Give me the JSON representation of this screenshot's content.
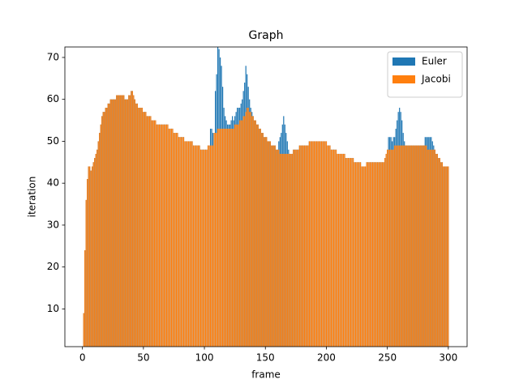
{
  "chart_data": {
    "type": "bar",
    "title": "Graph",
    "x_label": "frame",
    "y_label": "iteration",
    "x": [
      1,
      2,
      3,
      4,
      5,
      6,
      7,
      8,
      9,
      10,
      11,
      12,
      13,
      14,
      15,
      16,
      17,
      18,
      19,
      20,
      21,
      22,
      23,
      24,
      25,
      26,
      27,
      28,
      29,
      30,
      31,
      32,
      33,
      34,
      35,
      36,
      37,
      38,
      39,
      40,
      41,
      42,
      43,
      44,
      45,
      46,
      47,
      48,
      49,
      50,
      51,
      52,
      53,
      54,
      55,
      56,
      57,
      58,
      59,
      60,
      61,
      62,
      63,
      64,
      65,
      66,
      67,
      68,
      69,
      70,
      71,
      72,
      73,
      74,
      75,
      76,
      77,
      78,
      79,
      80,
      81,
      82,
      83,
      84,
      85,
      86,
      87,
      88,
      89,
      90,
      91,
      92,
      93,
      94,
      95,
      96,
      97,
      98,
      99,
      100,
      101,
      102,
      103,
      104,
      105,
      106,
      107,
      108,
      109,
      110,
      111,
      112,
      113,
      114,
      115,
      116,
      117,
      118,
      119,
      120,
      121,
      122,
      123,
      124,
      125,
      126,
      127,
      128,
      129,
      130,
      131,
      132,
      133,
      134,
      135,
      136,
      137,
      138,
      139,
      140,
      141,
      142,
      143,
      144,
      145,
      146,
      147,
      148,
      149,
      150,
      151,
      152,
      153,
      154,
      155,
      156,
      157,
      158,
      159,
      160,
      161,
      162,
      163,
      164,
      165,
      166,
      167,
      168,
      169,
      170,
      171,
      172,
      173,
      174,
      175,
      176,
      177,
      178,
      179,
      180,
      181,
      182,
      183,
      184,
      185,
      186,
      187,
      188,
      189,
      190,
      191,
      192,
      193,
      194,
      195,
      196,
      197,
      198,
      199,
      200,
      201,
      202,
      203,
      204,
      205,
      206,
      207,
      208,
      209,
      210,
      211,
      212,
      213,
      214,
      215,
      216,
      217,
      218,
      219,
      220,
      221,
      222,
      223,
      224,
      225,
      226,
      227,
      228,
      229,
      230,
      231,
      232,
      233,
      234,
      235,
      236,
      237,
      238,
      239,
      240,
      241,
      242,
      243,
      244,
      245,
      246,
      247,
      248,
      249,
      250,
      251,
      252,
      253,
      254,
      255,
      256,
      257,
      258,
      259,
      260,
      261,
      262,
      263,
      264,
      265,
      266,
      267,
      268,
      269,
      270,
      271,
      272,
      273,
      274,
      275,
      276,
      277,
      278,
      279,
      280,
      281,
      282,
      283,
      284,
      285,
      286,
      287,
      288,
      289,
      290,
      291,
      292,
      293,
      294,
      295,
      296,
      297,
      298,
      299,
      300
    ],
    "series": [
      {
        "name": "Euler",
        "color": "#1f77b4",
        "values": [
          9,
          24,
          36,
          41,
          44,
          44,
          43,
          44,
          45,
          46,
          47,
          48,
          50,
          52,
          54,
          56,
          57,
          57,
          58,
          58,
          59,
          59,
          60,
          60,
          60,
          60,
          60,
          61,
          61,
          61,
          61,
          61,
          61,
          61,
          60,
          60,
          60,
          61,
          61,
          62,
          62,
          61,
          60,
          59,
          59,
          58,
          58,
          58,
          58,
          57,
          57,
          57,
          56,
          56,
          56,
          56,
          55,
          55,
          55,
          55,
          54,
          54,
          54,
          54,
          54,
          54,
          54,
          54,
          54,
          54,
          53,
          53,
          53,
          53,
          52,
          52,
          52,
          52,
          51,
          51,
          51,
          51,
          51,
          50,
          50,
          50,
          50,
          50,
          50,
          50,
          49,
          49,
          49,
          49,
          49,
          49,
          48,
          48,
          48,
          48,
          48,
          48,
          49,
          49,
          53,
          53,
          52,
          52,
          62,
          66,
          73,
          72,
          70,
          68,
          63,
          58,
          56,
          55,
          54,
          54,
          54,
          55,
          56,
          55,
          56,
          57,
          58,
          58,
          58,
          59,
          60,
          62,
          64,
          68,
          66,
          63,
          60,
          58,
          57,
          56,
          55,
          55,
          54,
          54,
          53,
          53,
          52,
          52,
          51,
          51,
          51,
          50,
          50,
          50,
          49,
          49,
          49,
          49,
          48,
          48,
          50,
          51,
          52,
          54,
          56,
          54,
          52,
          50,
          48,
          47,
          47,
          47,
          48,
          48,
          48,
          48,
          48,
          49,
          49,
          49,
          49,
          49,
          49,
          49,
          49,
          50,
          50,
          50,
          50,
          50,
          50,
          50,
          50,
          50,
          50,
          50,
          50,
          50,
          50,
          50,
          49,
          49,
          49,
          48,
          48,
          48,
          48,
          48,
          47,
          47,
          47,
          47,
          47,
          47,
          47,
          46,
          46,
          46,
          46,
          46,
          46,
          46,
          45,
          45,
          45,
          45,
          45,
          45,
          44,
          44,
          44,
          44,
          45,
          45,
          45,
          45,
          45,
          45,
          45,
          45,
          45,
          45,
          45,
          45,
          45,
          45,
          45,
          46,
          47,
          48,
          51,
          51,
          51,
          50,
          51,
          51,
          53,
          55,
          57,
          58,
          57,
          55,
          52,
          50,
          49,
          49,
          49,
          49,
          49,
          49,
          49,
          49,
          49,
          49,
          49,
          49,
          49,
          49,
          49,
          49,
          51,
          51,
          51,
          51,
          51,
          51,
          50,
          49,
          48,
          47,
          47,
          46,
          46,
          45,
          45,
          44,
          44,
          44,
          44,
          44
        ]
      },
      {
        "name": "Jacobi",
        "color": "#ff7f0e",
        "values": [
          9,
          24,
          36,
          41,
          44,
          44,
          43,
          44,
          45,
          46,
          47,
          48,
          50,
          52,
          54,
          56,
          57,
          57,
          58,
          58,
          59,
          59,
          60,
          60,
          60,
          60,
          60,
          61,
          61,
          61,
          61,
          61,
          61,
          61,
          60,
          60,
          60,
          61,
          61,
          62,
          62,
          61,
          60,
          59,
          59,
          58,
          58,
          58,
          58,
          57,
          57,
          57,
          56,
          56,
          56,
          56,
          55,
          55,
          55,
          55,
          54,
          54,
          54,
          54,
          54,
          54,
          54,
          54,
          54,
          54,
          53,
          53,
          53,
          53,
          52,
          52,
          52,
          52,
          51,
          51,
          51,
          51,
          51,
          50,
          50,
          50,
          50,
          50,
          50,
          50,
          49,
          49,
          49,
          49,
          49,
          49,
          48,
          48,
          48,
          48,
          48,
          48,
          49,
          49,
          49,
          49,
          49,
          52,
          52,
          52,
          53,
          53,
          53,
          53,
          53,
          53,
          53,
          53,
          53,
          53,
          53,
          53,
          53,
          53,
          54,
          54,
          54,
          54,
          55,
          55,
          55,
          56,
          56,
          57,
          58,
          58,
          57,
          57,
          56,
          56,
          55,
          55,
          54,
          54,
          53,
          53,
          52,
          52,
          51,
          51,
          51,
          50,
          50,
          50,
          49,
          49,
          49,
          49,
          48,
          48,
          48,
          47,
          47,
          47,
          47,
          47,
          47,
          47,
          47,
          47,
          47,
          47,
          48,
          48,
          48,
          48,
          48,
          49,
          49,
          49,
          49,
          49,
          49,
          49,
          49,
          50,
          50,
          50,
          50,
          50,
          50,
          50,
          50,
          50,
          50,
          50,
          50,
          50,
          50,
          50,
          49,
          49,
          49,
          48,
          48,
          48,
          48,
          48,
          47,
          47,
          47,
          47,
          47,
          47,
          47,
          46,
          46,
          46,
          46,
          46,
          46,
          46,
          45,
          45,
          45,
          45,
          45,
          45,
          44,
          44,
          44,
          44,
          45,
          45,
          45,
          45,
          45,
          45,
          45,
          45,
          45,
          45,
          45,
          45,
          45,
          45,
          45,
          46,
          47,
          48,
          48,
          48,
          48,
          48,
          48,
          49,
          49,
          49,
          49,
          49,
          49,
          49,
          49,
          49,
          49,
          49,
          49,
          49,
          49,
          49,
          49,
          49,
          49,
          49,
          49,
          49,
          49,
          49,
          49,
          49,
          49,
          49,
          48,
          48,
          48,
          48,
          48,
          48,
          48,
          47,
          47,
          46,
          46,
          45,
          45,
          44,
          44,
          44,
          44,
          44
        ]
      }
    ],
    "xlim": [
      -14.4,
      315.4
    ],
    "xticks": [
      0,
      50,
      100,
      150,
      200,
      250,
      300
    ],
    "ylim": [
      1,
      72.5
    ],
    "yticks": [
      10,
      20,
      30,
      40,
      50,
      60,
      70
    ],
    "bar_width": 0.8,
    "legend": "upper right"
  }
}
